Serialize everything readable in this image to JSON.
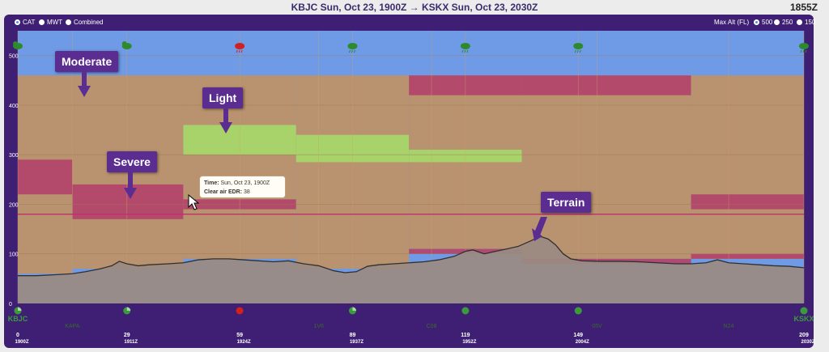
{
  "header": {
    "title": "KBJC Sun, Oct 23, 1900Z → KSKX Sun, Oct 23, 2030Z",
    "clock": "1855Z"
  },
  "controls": {
    "layers": [
      {
        "label": "CAT",
        "selected": true
      },
      {
        "label": "MWT",
        "selected": false
      },
      {
        "label": "Combined",
        "selected": false
      }
    ],
    "max_alt_label": "Max Alt (FL)",
    "max_alt_options": [
      {
        "label": "500",
        "selected": true
      },
      {
        "label": "250",
        "selected": false
      },
      {
        "label": "150",
        "selected": false
      }
    ]
  },
  "weather_icons": [
    {
      "x": 0,
      "icon": "partly-cloudy-icon"
    },
    {
      "x": 29,
      "icon": "partly-cloudy-icon"
    },
    {
      "x": 59,
      "icon": "thunderstorm-icon"
    },
    {
      "x": 89,
      "icon": "rain-icon"
    },
    {
      "x": 119,
      "icon": "rain-icon"
    },
    {
      "x": 149,
      "icon": "rain-icon"
    },
    {
      "x": 209,
      "icon": "showers-icon"
    }
  ],
  "colors": {
    "sky": "#6f9ae6",
    "moderate": "#b9926f",
    "severe": "#b2446a",
    "light": "#a6d96a",
    "terrain": "#9a8b82",
    "terrain_line": "#2f2f2f",
    "reference_line": "#c0306a"
  },
  "chart_data": {
    "type": "area",
    "title": "",
    "xlabel": "",
    "ylabel": "",
    "xlim": [
      0,
      209
    ],
    "ylim": [
      0,
      550
    ],
    "y_ticks": [
      0,
      100,
      200,
      300,
      400,
      500
    ],
    "grid": true,
    "reference_line_y": 180,
    "waypoints": [
      {
        "x": 0,
        "label": "KBJC",
        "dist": "0",
        "time": "1900Z",
        "marker": "partial-icon",
        "color": "#3c9a3c"
      },
      {
        "x": 14.5,
        "label": "KAPA",
        "dist": "",
        "time": "",
        "marker": "",
        "color": "#3c9a3c"
      },
      {
        "x": 29,
        "label": "",
        "dist": "29",
        "time": "1911Z",
        "marker": "partial-icon",
        "color": "#3c9a3c"
      },
      {
        "x": 59,
        "label": "",
        "dist": "59",
        "time": "1924Z",
        "marker": "dot-icon",
        "color": "#d21f1f"
      },
      {
        "x": 80,
        "label": "1V6",
        "dist": "",
        "time": "",
        "marker": "",
        "color": "#3c9a3c"
      },
      {
        "x": 89,
        "label": "",
        "dist": "89",
        "time": "1937Z",
        "marker": "partial-icon",
        "color": "#3c9a3c"
      },
      {
        "x": 110,
        "label": "C08",
        "dist": "",
        "time": "",
        "marker": "",
        "color": "#3c9a3c"
      },
      {
        "x": 119,
        "label": "",
        "dist": "119",
        "time": "1952Z",
        "marker": "dot-icon",
        "color": "#3c9a3c"
      },
      {
        "x": 149,
        "label": "",
        "dist": "149",
        "time": "2004Z",
        "marker": "dot-icon",
        "color": "#3c9a3c"
      },
      {
        "x": 154,
        "label": "05V",
        "dist": "",
        "time": "",
        "marker": "",
        "color": "#3c9a3c"
      },
      {
        "x": 189,
        "label": "N24",
        "dist": "",
        "time": "",
        "marker": "",
        "color": "#3c9a3c"
      },
      {
        "x": 209,
        "label": "KSKX",
        "dist": "209",
        "time": "2030Z",
        "marker": "dot-icon",
        "color": "#3c9a3c"
      }
    ],
    "turbulence_columns": [
      {
        "x0": 0,
        "x1": 14.5,
        "moderate": [
          60,
          460
        ],
        "segments": [
          {
            "y0": 220,
            "y1": 290,
            "severity": "severe"
          }
        ]
      },
      {
        "x0": 14.5,
        "x1": 44,
        "moderate": [
          70,
          460
        ],
        "segments": [
          {
            "y0": 170,
            "y1": 240,
            "severity": "severe"
          }
        ]
      },
      {
        "x0": 44,
        "x1": 74,
        "moderate": [
          90,
          460
        ],
        "segments": [
          {
            "y0": 300,
            "y1": 360,
            "severity": "light"
          },
          {
            "x_note": "",
            "y0": 190,
            "y1": 210,
            "severity": "severe"
          }
        ]
      },
      {
        "x0": 74,
        "x1": 104,
        "moderate": [
          70,
          460
        ],
        "segments": [
          {
            "y0": 285,
            "y1": 340,
            "severity": "light"
          }
        ]
      },
      {
        "x0": 104,
        "x1": 134,
        "moderate": [
          110,
          460
        ],
        "segments": [
          {
            "y0": 285,
            "y1": 310,
            "severity": "light"
          },
          {
            "y0": 420,
            "y1": 460,
            "severity": "severe"
          },
          {
            "y0": 100,
            "y1": 110,
            "severity": "severe"
          }
        ]
      },
      {
        "x0": 134,
        "x1": 179,
        "moderate": [
          90,
          460
        ],
        "segments": [
          {
            "y0": 420,
            "y1": 460,
            "severity": "severe"
          },
          {
            "y0": 80,
            "y1": 90,
            "severity": "severe"
          }
        ]
      },
      {
        "x0": 179,
        "x1": 209,
        "moderate": [
          90,
          460
        ],
        "segments": [
          {
            "y0": 190,
            "y1": 220,
            "severity": "severe"
          },
          {
            "y0": 90,
            "y1": 100,
            "severity": "severe"
          }
        ]
      }
    ],
    "terrain": [
      [
        0,
        56
      ],
      [
        5,
        56
      ],
      [
        10,
        58
      ],
      [
        14.5,
        60
      ],
      [
        18,
        64
      ],
      [
        22,
        70
      ],
      [
        25,
        76
      ],
      [
        27,
        85
      ],
      [
        29,
        80
      ],
      [
        32,
        76
      ],
      [
        35,
        78
      ],
      [
        40,
        80
      ],
      [
        44,
        82
      ],
      [
        48,
        88
      ],
      [
        52,
        90
      ],
      [
        56,
        90
      ],
      [
        60,
        88
      ],
      [
        64,
        86
      ],
      [
        68,
        84
      ],
      [
        72,
        86
      ],
      [
        76,
        80
      ],
      [
        80,
        76
      ],
      [
        84,
        66
      ],
      [
        87,
        62
      ],
      [
        90,
        64
      ],
      [
        93,
        75
      ],
      [
        96,
        78
      ],
      [
        100,
        80
      ],
      [
        104,
        82
      ],
      [
        108,
        84
      ],
      [
        112,
        88
      ],
      [
        116,
        95
      ],
      [
        119,
        105
      ],
      [
        121,
        108
      ],
      [
        124,
        100
      ],
      [
        127,
        105
      ],
      [
        130,
        110
      ],
      [
        133,
        115
      ],
      [
        136,
        125
      ],
      [
        139,
        135
      ],
      [
        141,
        130
      ],
      [
        143,
        118
      ],
      [
        145,
        100
      ],
      [
        147,
        90
      ],
      [
        150,
        86
      ],
      [
        155,
        85
      ],
      [
        160,
        85
      ],
      [
        165,
        84
      ],
      [
        170,
        82
      ],
      [
        175,
        80
      ],
      [
        179,
        80
      ],
      [
        183,
        82
      ],
      [
        186,
        88
      ],
      [
        189,
        82
      ],
      [
        193,
        80
      ],
      [
        197,
        78
      ],
      [
        201,
        76
      ],
      [
        205,
        75
      ],
      [
        209,
        72
      ]
    ]
  },
  "annotations": [
    {
      "label": "Moderate"
    },
    {
      "label": "Light"
    },
    {
      "label": "Severe"
    },
    {
      "label": "Terrain"
    }
  ],
  "tooltip": {
    "time_label": "Time:",
    "time_value": "Sun, Oct 23, 1900Z",
    "edr_label": "Clear air EDR:",
    "edr_value": "38"
  }
}
